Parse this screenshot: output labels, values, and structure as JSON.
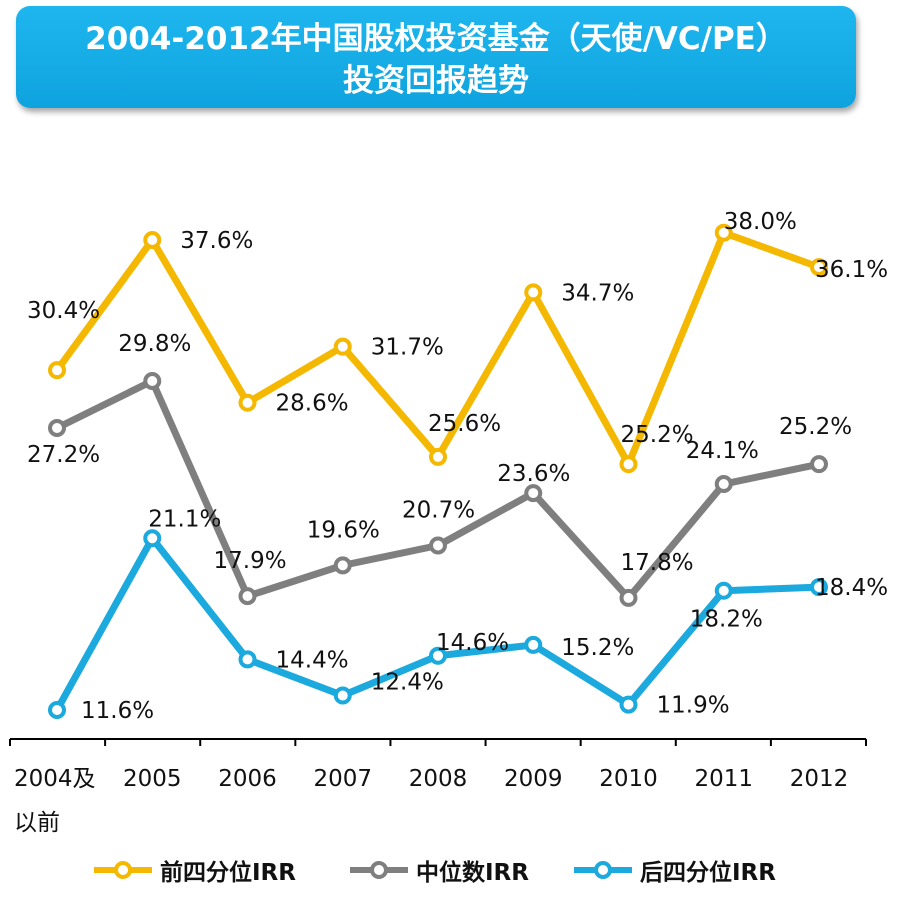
{
  "title": {
    "line1": "2004-2012年中国股权投资基金（天使/VC/PE）",
    "line2": "投资回报趋势"
  },
  "colors": {
    "top_quartile": "#f5b800",
    "median": "#7f7f7f",
    "bottom_quartile": "#1ba9de",
    "banner": "#13abe6"
  },
  "chart_data": {
    "type": "line",
    "title": "2004-2012年中国股权投资基金（天使/VC/PE）投资回报趋势",
    "categories": [
      [
        "2004及",
        "以前"
      ],
      [
        "2005"
      ],
      [
        "2006"
      ],
      [
        "2007"
      ],
      [
        "2008"
      ],
      [
        "2009"
      ],
      [
        "2010"
      ],
      [
        "2011"
      ],
      [
        "2012"
      ]
    ],
    "ylim": [
      9,
      40
    ],
    "grid": false,
    "legend_position": "bottom",
    "series": [
      {
        "name": "前四分位IRR",
        "color": "#f5b800",
        "values": [
          30.4,
          37.6,
          28.6,
          31.7,
          25.6,
          34.7,
          25.2,
          38.0,
          36.1
        ],
        "labels": [
          "30.4%",
          "37.6%",
          "28.6%",
          "31.7%",
          "25.6%",
          "34.7%",
          "25.2%",
          "38.0%",
          "36.1%"
        ]
      },
      {
        "name": "中位数IRR",
        "color": "#7f7f7f",
        "values": [
          27.2,
          29.8,
          17.9,
          19.6,
          20.7,
          23.6,
          17.8,
          24.1,
          25.2
        ],
        "labels": [
          "27.2%",
          "29.8%",
          "17.9%",
          "19.6%",
          "20.7%",
          "23.6%",
          "17.8%",
          "24.1%",
          "25.2%"
        ]
      },
      {
        "name": "后四分位IRR",
        "color": "#1ba9de",
        "values": [
          11.6,
          21.1,
          14.4,
          12.4,
          14.6,
          15.2,
          11.9,
          18.2,
          18.4
        ],
        "labels": [
          "11.6%",
          "21.1%",
          "14.4%",
          "12.4%",
          "14.6%",
          "15.2%",
          "11.9%",
          "18.2%",
          "18.4%"
        ]
      }
    ]
  }
}
